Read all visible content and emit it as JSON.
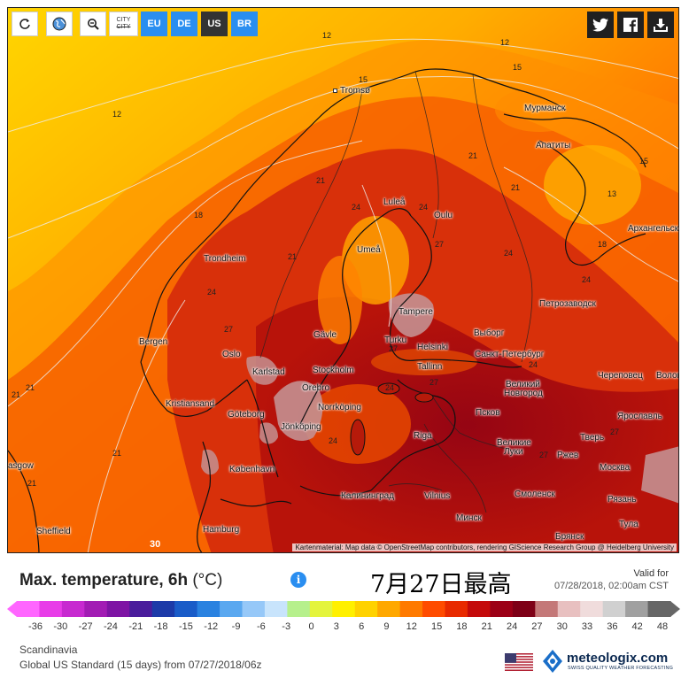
{
  "toolbar": {
    "refresh_icon": "refresh-icon",
    "globe_icon": "globe-icon",
    "zoom_icon": "zoom-out-icon",
    "city_label_top": "CITY",
    "city_label_bottom": "CITY",
    "regions": [
      "EU",
      "DE",
      "US",
      "BR"
    ],
    "active_region": "US"
  },
  "share": {
    "twitter_icon": "twitter-icon",
    "facebook_icon": "facebook-icon",
    "download_icon": "download-icon"
  },
  "map": {
    "cities": [
      "Tromsø",
      "Мурманск",
      "Апатиты",
      "Luleå",
      "Oulu",
      "Архангельск",
      "Trondheim",
      "Umeå",
      "Tampere",
      "Петрозаводск",
      "Bergen",
      "Gävle",
      "Turku",
      "Helsinki",
      "Выборг",
      "Санкт-Петербург",
      "Oslo",
      "Stockholm",
      "Tallinn",
      "Karlstad",
      "Череповец",
      "Волог",
      "Örebro",
      "Великий",
      "Новгород",
      "Kristiansand",
      "Norrköping",
      "Псков",
      "Ярославль",
      "Göteborg",
      "Jönköping",
      "Riga",
      "Великие",
      "Луки",
      "Тверь",
      "Ржев",
      "asgow",
      "København",
      "Москва",
      "Калининград",
      "Vilnius",
      "Смоленск",
      "Рязань",
      "Минск",
      "Sheffield",
      "Hamburg",
      "Брянск",
      "Тула"
    ],
    "isotherms": [
      "12",
      "12",
      "15",
      "15",
      "12",
      "15",
      "21",
      "21",
      "13",
      "21",
      "18",
      "24",
      "24",
      "27",
      "18",
      "21",
      "24",
      "24",
      "24",
      "21",
      "27",
      "27",
      "24",
      "27",
      "21",
      "24",
      "27",
      "21",
      "24",
      "27",
      "21",
      "30"
    ],
    "attribution": "Kartenmaterial: Map data © OpenStreetMap contributors, rendering GIScience Research Group @ Heidelberg University"
  },
  "legend": {
    "title": "Max. temperature, 6h",
    "unit": "(°C)",
    "info_icon": "info-icon",
    "annotation": "7月27日最高",
    "valid_for_label": "Valid for",
    "valid_for_date": "07/28/2018, 02:00am CST",
    "scale_ticks": [
      "-36",
      "-30",
      "-27",
      "-24",
      "-21",
      "-18",
      "-15",
      "-12",
      "-9",
      "-6",
      "-3",
      "0",
      "3",
      "6",
      "9",
      "12",
      "15",
      "18",
      "21",
      "24",
      "27",
      "30",
      "33",
      "36",
      "42",
      "48"
    ],
    "scale_colors": [
      "#ff66ff",
      "#e83ce8",
      "#c72ad0",
      "#a21cb4",
      "#7e14a4",
      "#4a1c9c",
      "#1c3aa8",
      "#1a5cc8",
      "#2a82e0",
      "#5aa8f0",
      "#96c8f8",
      "#c8e4fc",
      "#b6f08c",
      "#e4f43c",
      "#fff000",
      "#ffd200",
      "#ffa800",
      "#ff7a00",
      "#ff4c00",
      "#e82a00",
      "#c40a0a",
      "#9c0016",
      "#7e0016",
      "#c47878",
      "#e8c0c0",
      "#f0dcdc",
      "#d0d0d0",
      "#a0a0a0",
      "#666666"
    ],
    "region": "Scandinavia",
    "model": "Global US Standard (15 days) from 07/27/2018/06z"
  },
  "branding": {
    "flag_icon": "us-flag-icon",
    "logo_icon": "meteologix-logo-icon",
    "name": "meteologix.com",
    "tagline": "SWISS QUALITY WEATHER FORECASTING"
  }
}
